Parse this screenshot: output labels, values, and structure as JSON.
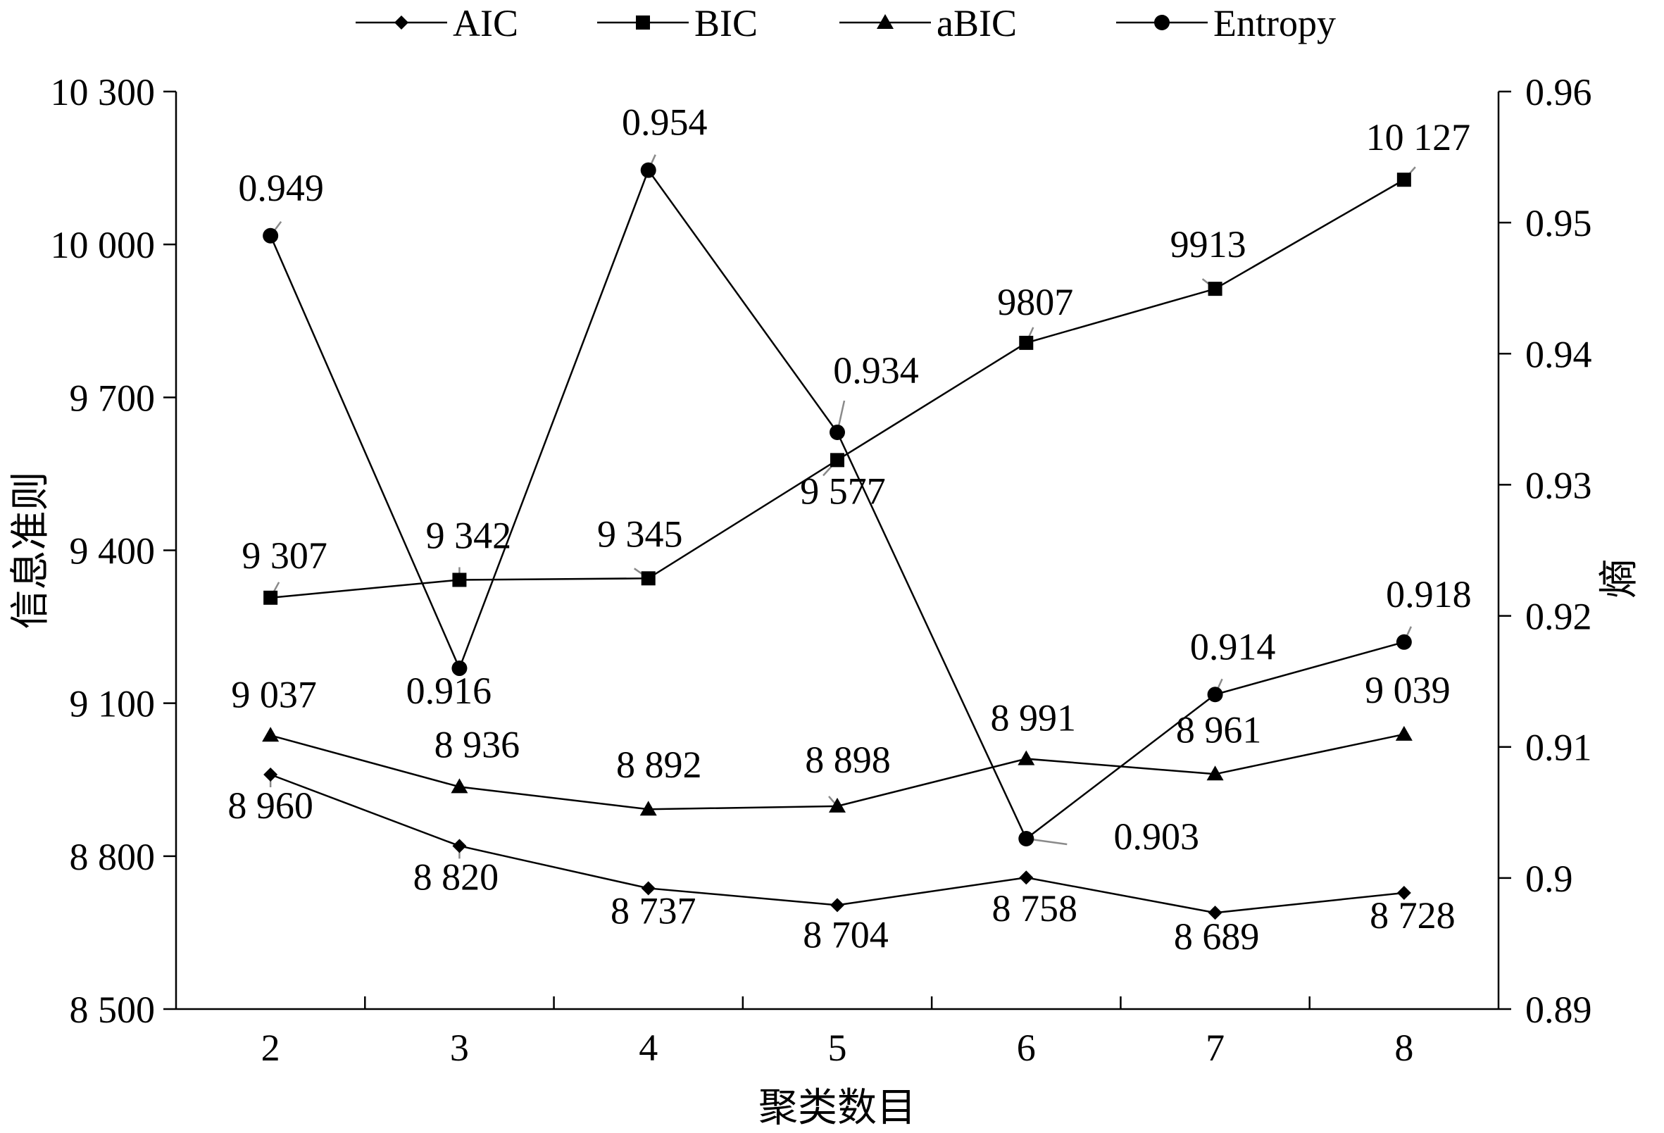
{
  "chart_data": {
    "type": "line",
    "xlabel": "聚类数目",
    "ylabel_left": "信息准则",
    "ylabel_right": "熵",
    "x": [
      2,
      3,
      4,
      5,
      6,
      7,
      8
    ],
    "y_left_lim": [
      8500,
      10300
    ],
    "y_left_ticks": [
      8500,
      8800,
      9100,
      9400,
      9700,
      10000,
      10300
    ],
    "y_left_tick_labels": [
      "8 500",
      "8 800",
      "9 100",
      "9 400",
      "9 700",
      "10 000",
      "10 300"
    ],
    "y_right_lim": [
      0.89,
      0.96
    ],
    "y_right_ticks": [
      0.89,
      0.9,
      0.91,
      0.92,
      0.93,
      0.94,
      0.95,
      0.96
    ],
    "y_right_tick_labels": [
      "0.89",
      "0.9",
      "0.91",
      "0.92",
      "0.93",
      "0.94",
      "0.95",
      "0.96"
    ],
    "grid": false,
    "legend_position": "top",
    "series": [
      {
        "name": "AIC",
        "axis": "left",
        "marker": "diamond",
        "values": [
          8960,
          8820,
          8737,
          8704,
          8758,
          8689,
          8728
        ],
        "labels": [
          "8 960",
          "8 820",
          "8 737",
          "8 704",
          "8 758",
          "8 689",
          "8 728"
        ]
      },
      {
        "name": "BIC",
        "axis": "left",
        "marker": "square",
        "values": [
          9307,
          9342,
          9345,
          9577,
          9807,
          9913,
          10127
        ],
        "labels": [
          "9 307",
          "9 342",
          "9 345",
          "9 577",
          "9807",
          "9913",
          "10 127"
        ]
      },
      {
        "name": "aBIC",
        "axis": "left",
        "marker": "triangle",
        "values": [
          9037,
          8936,
          8892,
          8898,
          8991,
          8961,
          9039
        ],
        "labels": [
          "9 037",
          "8 936",
          "8 892",
          "8 898",
          "8 991",
          "8 961",
          "9 039"
        ]
      },
      {
        "name": "Entropy",
        "axis": "right",
        "marker": "circle",
        "values": [
          0.949,
          0.916,
          0.954,
          0.934,
          0.903,
          0.914,
          0.918
        ],
        "labels": [
          "0.949",
          "0.916",
          "0.954",
          "0.934",
          "0.903",
          "0.914",
          "0.918"
        ]
      }
    ]
  }
}
